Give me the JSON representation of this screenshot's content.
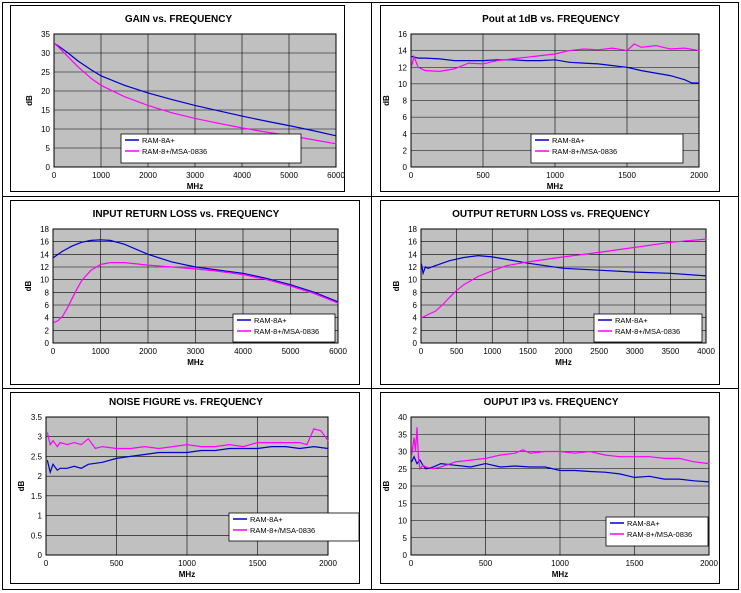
{
  "chart_data": [
    {
      "type": "line",
      "title": "GAIN vs. FREQUENCY",
      "xlabel": "MHz",
      "ylabel": "dB",
      "xlim": [
        0,
        6000
      ],
      "ylim": [
        0,
        35
      ],
      "xticks": [
        0,
        1000,
        2000,
        3000,
        4000,
        5000,
        6000
      ],
      "yticks": [
        0,
        5,
        10,
        15,
        20,
        25,
        30,
        35
      ],
      "legend_position": "bottom-right",
      "grid": true,
      "series": [
        {
          "name": "RAM-8A+",
          "color": "#0000cc",
          "x": [
            10,
            100,
            300,
            500,
            800,
            1000,
            1500,
            2000,
            2500,
            3000,
            3500,
            4000,
            4500,
            5000,
            5500,
            6000
          ],
          "y": [
            32.5,
            31.8,
            30,
            28,
            25.5,
            24,
            21.5,
            19.5,
            17.8,
            16.2,
            14.8,
            13.4,
            12.1,
            10.9,
            9.6,
            8.2
          ]
        },
        {
          "name": "RAM-8+/MSA-0836",
          "color": "#ff00ff",
          "x": [
            10,
            100,
            300,
            500,
            800,
            1000,
            1500,
            2000,
            2500,
            3000,
            3500,
            4000,
            4500,
            5000,
            5500,
            6000
          ],
          "y": [
            32.5,
            31.5,
            29,
            26.5,
            23.2,
            21.5,
            18.5,
            16.2,
            14.3,
            12.8,
            11.5,
            10.3,
            9.2,
            8.3,
            7.2,
            6.1
          ]
        }
      ]
    },
    {
      "type": "line",
      "title": "Pout at 1dB vs. FREQUENCY",
      "xlabel": "MHz",
      "ylabel": "dB",
      "xlim": [
        0,
        2000
      ],
      "ylim": [
        0,
        16
      ],
      "xticks": [
        0,
        500,
        1000,
        1500,
        2000
      ],
      "yticks": [
        0,
        2,
        4,
        6,
        8,
        10,
        12,
        14,
        16
      ],
      "legend_position": "bottom-right",
      "grid": true,
      "series": [
        {
          "name": "RAM-8A+",
          "color": "#0000cc",
          "x": [
            5,
            50,
            100,
            200,
            300,
            400,
            500,
            600,
            700,
            800,
            900,
            1000,
            1100,
            1200,
            1300,
            1400,
            1500,
            1600,
            1700,
            1800,
            1900,
            1950,
            2000
          ],
          "y": [
            13.3,
            13.1,
            13.1,
            13,
            12.8,
            12.8,
            12.8,
            12.9,
            12.9,
            12.8,
            12.8,
            12.9,
            12.6,
            12.5,
            12.4,
            12.2,
            12,
            11.6,
            11.3,
            11,
            10.5,
            10.1,
            10.1
          ]
        },
        {
          "name": "RAM-8+/MSA-0836",
          "color": "#ff00ff",
          "x": [
            5,
            20,
            50,
            100,
            200,
            300,
            400,
            500,
            600,
            700,
            800,
            900,
            1000,
            1100,
            1200,
            1300,
            1400,
            1500,
            1550,
            1600,
            1700,
            1800,
            1900,
            2000
          ],
          "y": [
            12.2,
            13.3,
            12,
            11.6,
            11.5,
            11.8,
            12.5,
            12.4,
            12.8,
            13,
            13.2,
            13.4,
            13.6,
            14,
            14.2,
            14.1,
            14.3,
            14,
            14.8,
            14.4,
            14.6,
            14.2,
            14.3,
            14
          ]
        }
      ]
    },
    {
      "type": "line",
      "title": "INPUT RETURN LOSS vs. FREQUENCY",
      "xlabel": "MHz",
      "ylabel": "dB",
      "xlim": [
        0,
        6000
      ],
      "ylim": [
        0,
        18
      ],
      "xticks": [
        0,
        1000,
        2000,
        3000,
        4000,
        5000,
        6000
      ],
      "yticks": [
        0,
        2,
        4,
        6,
        8,
        10,
        12,
        14,
        16,
        18
      ],
      "legend_position": "bottom-right",
      "grid": true,
      "series": [
        {
          "name": "RAM-8A+",
          "color": "#0000cc",
          "x": [
            10,
            200,
            400,
            600,
            800,
            1000,
            1200,
            1500,
            2000,
            2500,
            3000,
            3500,
            4000,
            4500,
            5000,
            5500,
            6000
          ],
          "y": [
            13.5,
            14.5,
            15.3,
            15.9,
            16.2,
            16.3,
            16.2,
            15.6,
            14,
            12.8,
            12,
            11.5,
            11,
            10.2,
            9.2,
            8,
            6.5
          ]
        },
        {
          "name": "RAM-8+/MSA-0836",
          "color": "#ff00ff",
          "x": [
            10,
            100,
            200,
            300,
            400,
            500,
            600,
            800,
            1000,
            1200,
            1500,
            2000,
            2500,
            3000,
            3500,
            4000,
            4500,
            5000,
            5500,
            6000
          ],
          "y": [
            3.2,
            3.5,
            4.2,
            5.5,
            7,
            8.5,
            9.8,
            11.5,
            12.4,
            12.7,
            12.7,
            12.3,
            12,
            11.7,
            11.3,
            10.8,
            10,
            9,
            7.8,
            6.3
          ]
        }
      ]
    },
    {
      "type": "line",
      "title": "OUTPUT RETURN LOSS vs. FREQUENCY",
      "xlabel": "MHz",
      "ylabel": "dB",
      "xlim": [
        0,
        4000
      ],
      "ylim": [
        0,
        18
      ],
      "xticks": [
        0,
        500,
        1000,
        1500,
        2000,
        2500,
        3000,
        3500,
        4000
      ],
      "yticks": [
        0,
        2,
        4,
        6,
        8,
        10,
        12,
        14,
        16,
        18
      ],
      "legend_position": "bottom-right",
      "grid": true,
      "series": [
        {
          "name": "RAM-8A+",
          "color": "#0000cc",
          "x": [
            5,
            30,
            60,
            100,
            200,
            400,
            600,
            800,
            1000,
            1200,
            1500,
            2000,
            2500,
            3000,
            3500,
            4000
          ],
          "y": [
            12.5,
            11,
            12,
            11.8,
            12.2,
            13,
            13.5,
            13.8,
            13.6,
            13.2,
            12.6,
            11.8,
            11.5,
            11.2,
            11,
            10.6
          ]
        },
        {
          "name": "RAM-8+/MSA-0836",
          "color": "#ff00ff",
          "x": [
            5,
            50,
            100,
            200,
            300,
            400,
            500,
            600,
            800,
            1000,
            1200,
            1500,
            2000,
            2500,
            3000,
            3500,
            4000
          ],
          "y": [
            4,
            4.2,
            4.5,
            5,
            6,
            7.2,
            8.3,
            9.2,
            10.5,
            11.4,
            12.2,
            12.8,
            13.6,
            14.3,
            15.1,
            15.9,
            16.4
          ]
        }
      ]
    },
    {
      "type": "line",
      "title": "NOISE FIGURE vs. FREQUENCY",
      "xlabel": "MHz",
      "ylabel": "dB",
      "xlim": [
        0,
        2000
      ],
      "ylim": [
        0,
        3.5
      ],
      "xticks": [
        0,
        500,
        1000,
        1500,
        2000
      ],
      "yticks": [
        0,
        0.5,
        1,
        1.5,
        2,
        2.5,
        3,
        3.5
      ],
      "legend_position": "bottom-right",
      "grid": true,
      "series": [
        {
          "name": "RAM-8A+",
          "color": "#0000cc",
          "x": [
            10,
            30,
            50,
            80,
            100,
            150,
            200,
            250,
            300,
            400,
            500,
            600,
            700,
            800,
            900,
            1000,
            1100,
            1200,
            1300,
            1400,
            1500,
            1600,
            1700,
            1800,
            1900,
            2000
          ],
          "y": [
            2.4,
            2.1,
            2.3,
            2.15,
            2.2,
            2.2,
            2.25,
            2.2,
            2.3,
            2.35,
            2.45,
            2.5,
            2.55,
            2.6,
            2.6,
            2.6,
            2.65,
            2.65,
            2.7,
            2.7,
            2.7,
            2.75,
            2.75,
            2.7,
            2.75,
            2.7
          ]
        },
        {
          "name": "RAM-8+/MSA-0836",
          "color": "#ff00ff",
          "x": [
            10,
            30,
            50,
            80,
            100,
            150,
            200,
            250,
            300,
            350,
            400,
            500,
            600,
            700,
            800,
            900,
            1000,
            1100,
            1200,
            1300,
            1400,
            1500,
            1600,
            1700,
            1800,
            1850,
            1900,
            1950,
            2000
          ],
          "y": [
            3.1,
            2.8,
            2.9,
            2.75,
            2.85,
            2.8,
            2.85,
            2.8,
            2.95,
            2.7,
            2.75,
            2.7,
            2.7,
            2.75,
            2.7,
            2.75,
            2.8,
            2.75,
            2.75,
            2.8,
            2.75,
            2.85,
            2.85,
            2.85,
            2.85,
            2.8,
            3.2,
            3.15,
            2.9
          ]
        }
      ]
    },
    {
      "type": "line",
      "title": "OUPUT IP3 vs. FREQUENCY",
      "xlabel": "MHz",
      "ylabel": "dB",
      "xlim": [
        0,
        2000
      ],
      "ylim": [
        0,
        40
      ],
      "xticks": [
        0,
        500,
        1000,
        1500,
        2000
      ],
      "yticks": [
        0,
        5,
        10,
        15,
        20,
        25,
        30,
        35,
        40
      ],
      "legend_position": "bottom-right",
      "grid": true,
      "series": [
        {
          "name": "RAM-8A+",
          "color": "#0000cc",
          "x": [
            5,
            20,
            40,
            60,
            80,
            100,
            150,
            200,
            300,
            400,
            500,
            600,
            700,
            800,
            900,
            1000,
            1100,
            1200,
            1300,
            1400,
            1500,
            1600,
            1700,
            1800,
            1900,
            2000
          ],
          "y": [
            27,
            28.5,
            26.5,
            27.5,
            26,
            25,
            25.5,
            26.5,
            26,
            25.5,
            26.5,
            25.5,
            25.8,
            25.5,
            25.5,
            24.5,
            24.5,
            24.2,
            24,
            23.5,
            22.5,
            22.8,
            22,
            22,
            21.5,
            21.2
          ]
        },
        {
          "name": "RAM-8+/MSA-0836",
          "color": "#ff00ff",
          "x": [
            5,
            20,
            30,
            40,
            50,
            60,
            80,
            100,
            150,
            200,
            300,
            400,
            500,
            600,
            700,
            750,
            800,
            900,
            1000,
            1100,
            1200,
            1300,
            1400,
            1500,
            1600,
            1700,
            1800,
            1900,
            2000
          ],
          "y": [
            29,
            34,
            30,
            37,
            28,
            25,
            26,
            25.5,
            25,
            25.5,
            27,
            27.5,
            28,
            29,
            29.5,
            30.5,
            29.5,
            30,
            30,
            29.5,
            30,
            29,
            28.5,
            28.5,
            28.5,
            28,
            28,
            27,
            26.5
          ]
        }
      ]
    }
  ]
}
